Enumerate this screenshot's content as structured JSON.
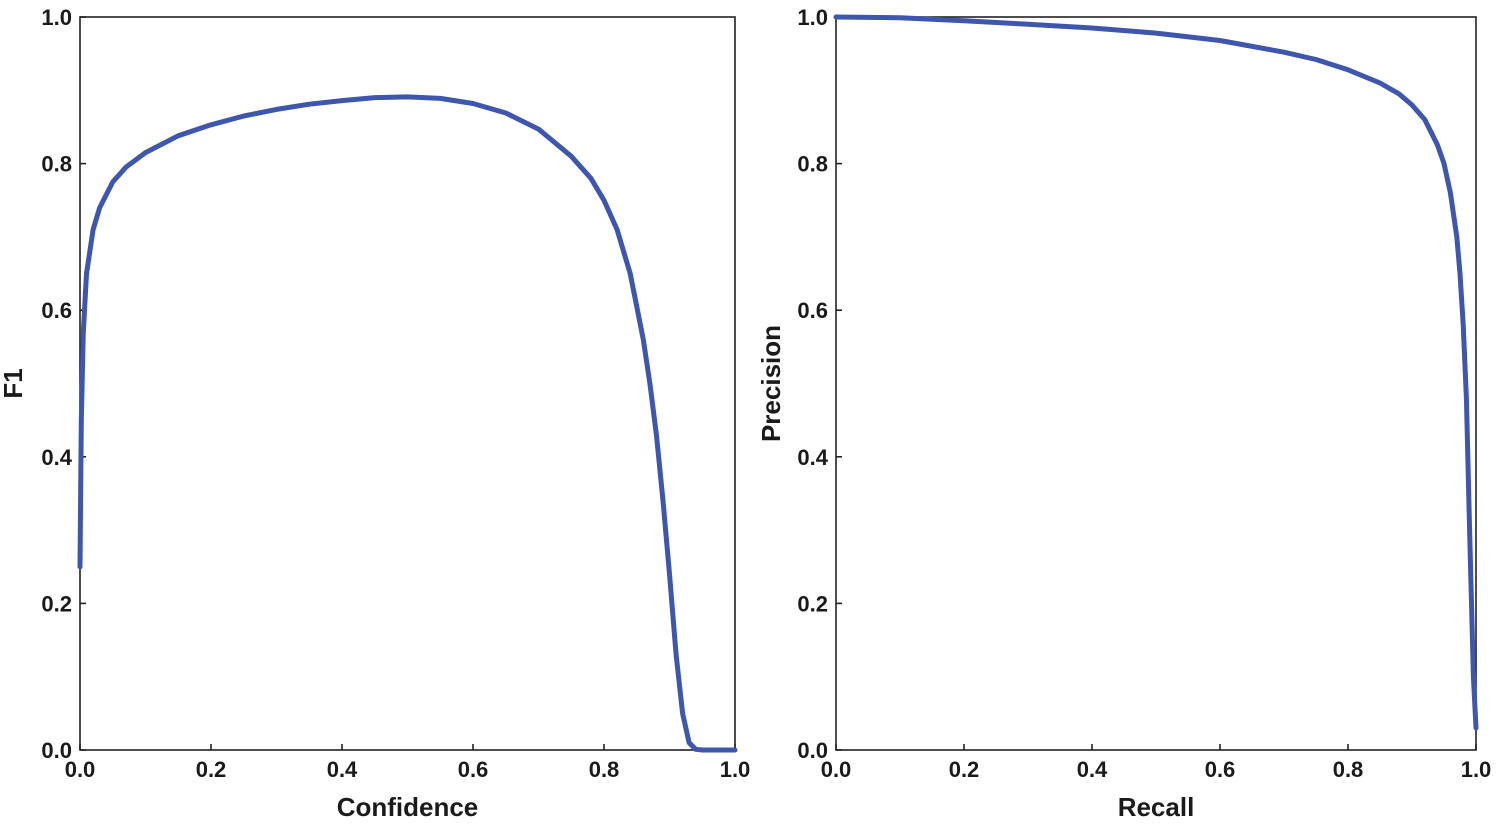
{
  "chart_data": [
    {
      "type": "line",
      "xlabel": "Confidence",
      "ylabel": "F1",
      "xlim": [
        0,
        1
      ],
      "ylim": [
        0,
        1
      ],
      "xticks": [
        "0.0",
        "0.2",
        "0.4",
        "0.6",
        "0.8",
        "1.0"
      ],
      "yticks": [
        "0.0",
        "0.2",
        "0.4",
        "0.6",
        "0.8",
        "1.0"
      ],
      "grid": false,
      "series": [
        {
          "color": "#3f56ad",
          "x": [
            0.0,
            0.002,
            0.005,
            0.01,
            0.02,
            0.03,
            0.05,
            0.07,
            0.1,
            0.15,
            0.2,
            0.25,
            0.3,
            0.35,
            0.4,
            0.45,
            0.5,
            0.55,
            0.6,
            0.65,
            0.7,
            0.75,
            0.78,
            0.8,
            0.82,
            0.84,
            0.86,
            0.87,
            0.88,
            0.89,
            0.9,
            0.91,
            0.92,
            0.93,
            0.94,
            0.95,
            0.97,
            1.0
          ],
          "y": [
            0.25,
            0.45,
            0.57,
            0.65,
            0.71,
            0.74,
            0.775,
            0.795,
            0.815,
            0.838,
            0.853,
            0.865,
            0.874,
            0.881,
            0.886,
            0.89,
            0.891,
            0.889,
            0.882,
            0.869,
            0.847,
            0.81,
            0.78,
            0.75,
            0.71,
            0.65,
            0.56,
            0.5,
            0.43,
            0.34,
            0.24,
            0.13,
            0.05,
            0.01,
            0.001,
            0.0,
            0.0,
            0.0
          ]
        }
      ]
    },
    {
      "type": "line",
      "xlabel": "Recall",
      "ylabel": "Precision",
      "xlim": [
        0,
        1
      ],
      "ylim": [
        0,
        1
      ],
      "xticks": [
        "0.0",
        "0.2",
        "0.4",
        "0.6",
        "0.8",
        "1.0"
      ],
      "yticks": [
        "0.0",
        "0.2",
        "0.4",
        "0.6",
        "0.8",
        "1.0"
      ],
      "grid": false,
      "series": [
        {
          "color": "#3f56ad",
          "x": [
            0.0,
            0.1,
            0.2,
            0.3,
            0.4,
            0.5,
            0.6,
            0.7,
            0.75,
            0.8,
            0.85,
            0.88,
            0.9,
            0.92,
            0.94,
            0.95,
            0.96,
            0.97,
            0.975,
            0.98,
            0.985,
            0.99,
            0.993,
            0.996,
            1.0
          ],
          "y": [
            1.0,
            0.999,
            0.995,
            0.99,
            0.985,
            0.978,
            0.968,
            0.952,
            0.942,
            0.928,
            0.91,
            0.895,
            0.88,
            0.86,
            0.825,
            0.8,
            0.76,
            0.7,
            0.65,
            0.58,
            0.48,
            0.3,
            0.2,
            0.1,
            0.03
          ]
        }
      ]
    }
  ]
}
